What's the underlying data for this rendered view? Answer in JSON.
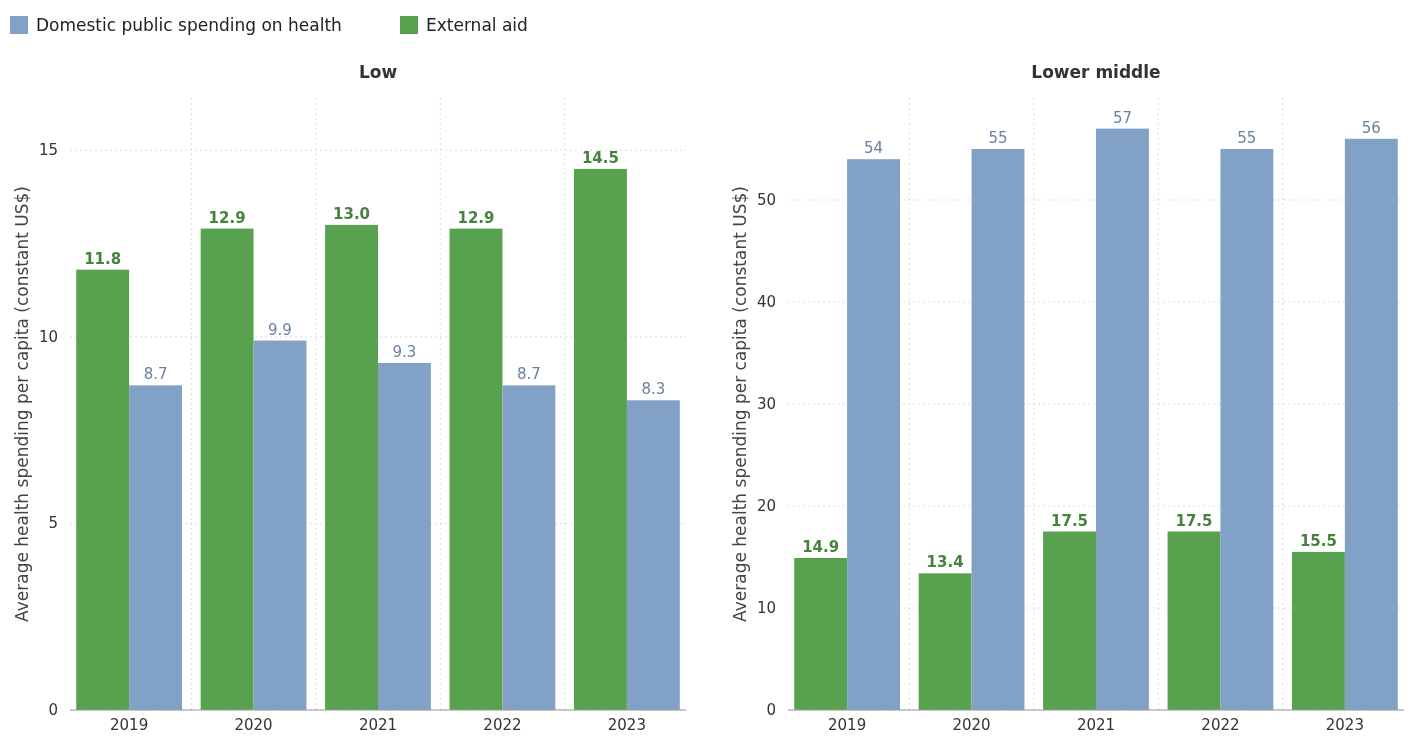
{
  "chart_data": [
    {
      "type": "bar",
      "title": "Low",
      "ylabel": "Average health spending per capita (constant US$)",
      "categories": [
        "2019",
        "2020",
        "2021",
        "2022",
        "2023"
      ],
      "series": [
        {
          "name": "External aid",
          "color": "#58a14e",
          "values": [
            11.8,
            12.9,
            13.0,
            12.9,
            14.5
          ],
          "value_labels": [
            "11.8",
            "12.9",
            "13.0",
            "12.9",
            "14.5"
          ]
        },
        {
          "name": "Domestic public spending on health",
          "color": "#82a1c6",
          "values": [
            8.7,
            9.9,
            9.3,
            8.7,
            8.3
          ],
          "value_labels": [
            "8.7",
            "9.9",
            "9.3",
            "8.7",
            "8.3"
          ]
        }
      ],
      "ylim": [
        0,
        16.4
      ],
      "yticks": [
        0,
        5,
        10,
        15
      ],
      "grid": true,
      "legend": "top left"
    },
    {
      "type": "bar",
      "title": "Lower middle",
      "ylabel": "Average health spending per capita (constant US$)",
      "categories": [
        "2019",
        "2020",
        "2021",
        "2022",
        "2023"
      ],
      "series": [
        {
          "color": "#58a14e",
          "values": [
            14.9,
            13.4,
            17.5,
            17.5,
            15.5
          ],
          "value_labels": [
            "14.9",
            "13.4",
            "17.5",
            "17.5",
            "15.5"
          ]
        },
        {
          "color": "#82a1c6",
          "values": [
            54,
            55,
            57,
            55,
            56
          ],
          "value_labels": [
            "54",
            "55",
            "57",
            "55",
            "56"
          ]
        }
      ],
      "ylim": [
        0,
        60
      ],
      "yticks": [
        0,
        10,
        20,
        30,
        40,
        50
      ],
      "grid": true
    }
  ]
}
